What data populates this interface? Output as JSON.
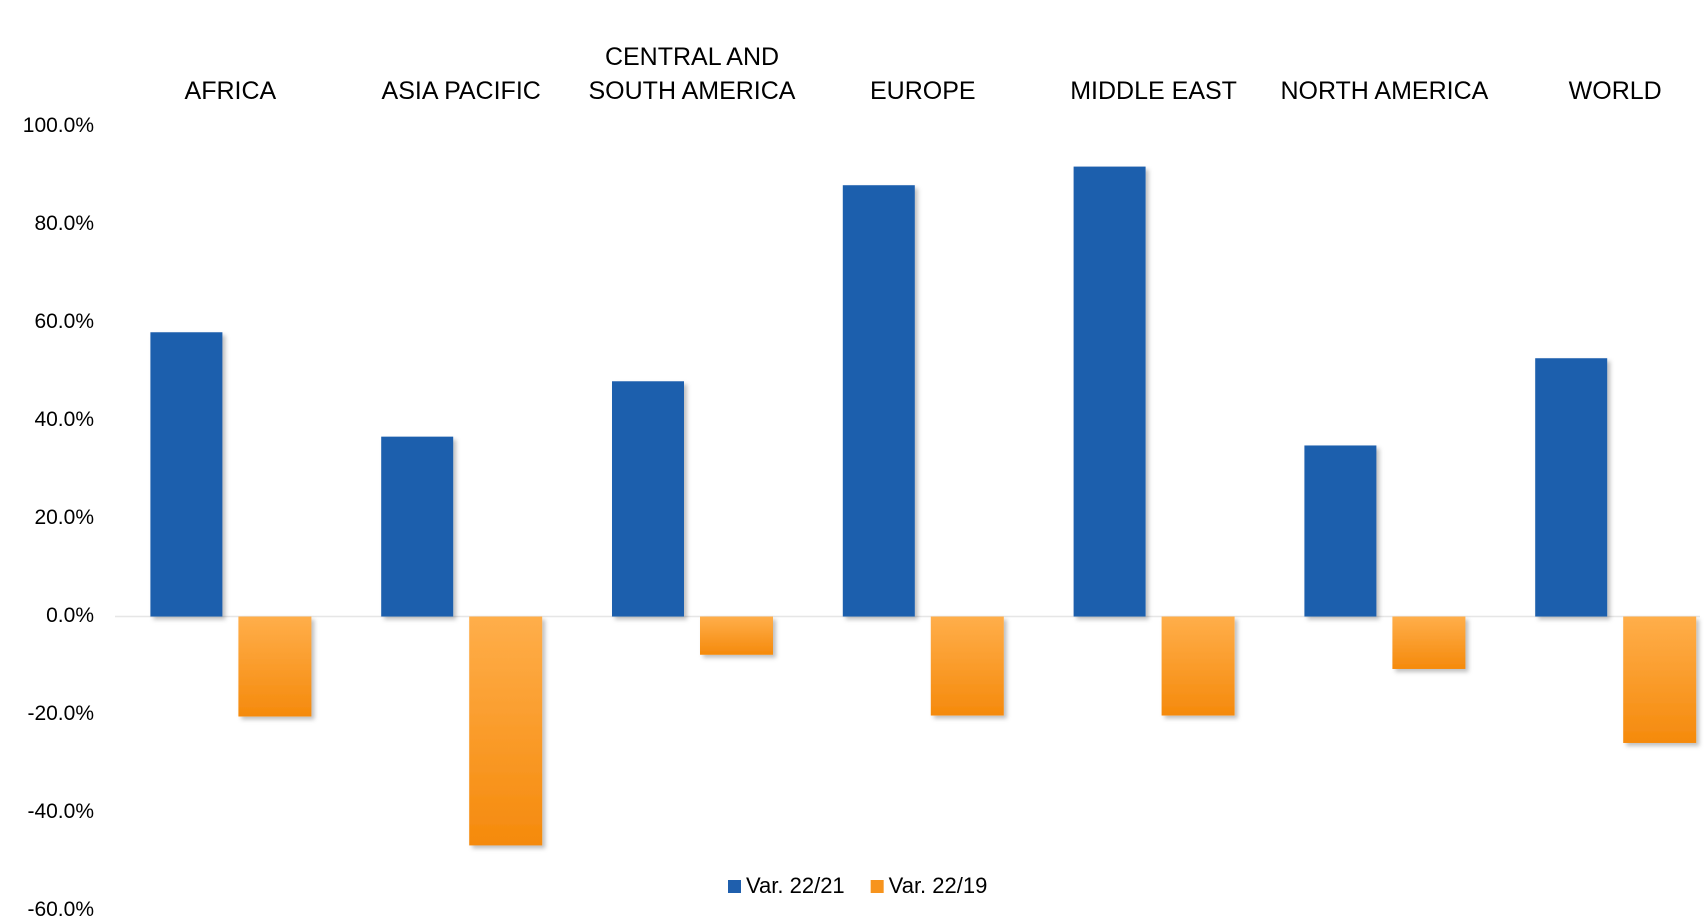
{
  "chart_data": {
    "type": "bar",
    "categories": [
      "AFRICA",
      "ASIA PACIFIC",
      "CENTRAL AND SOUTH AMERICA",
      "EUROPE",
      "MIDDLE EAST",
      "NORTH AMERICA",
      "WORLD"
    ],
    "series": [
      {
        "name": "Var. 22/21",
        "color": "#1f5fad",
        "values": [
          58.0,
          36.7,
          48.0,
          88.0,
          91.8,
          34.9,
          52.7
        ]
      },
      {
        "name": "Var. 22/19",
        "color": "#f7941d",
        "values": [
          -20.4,
          -46.7,
          -7.8,
          -20.2,
          -20.2,
          -10.7,
          -25.8
        ]
      }
    ],
    "ylim": [
      -60,
      100
    ],
    "yticks": [
      {
        "value": -60,
        "label": "-60.0%"
      },
      {
        "value": -40,
        "label": "-40.0%"
      },
      {
        "value": -20,
        "label": "-20.0%"
      },
      {
        "value": 0,
        "label": "0.0%"
      },
      {
        "value": 20,
        "label": "20.0%"
      },
      {
        "value": 40,
        "label": "40.0%"
      },
      {
        "value": 60,
        "label": "60.0%"
      },
      {
        "value": 80,
        "label": "80.0%"
      },
      {
        "value": 100,
        "label": "100.0%"
      }
    ],
    "grid": false,
    "legend": "bottom"
  }
}
